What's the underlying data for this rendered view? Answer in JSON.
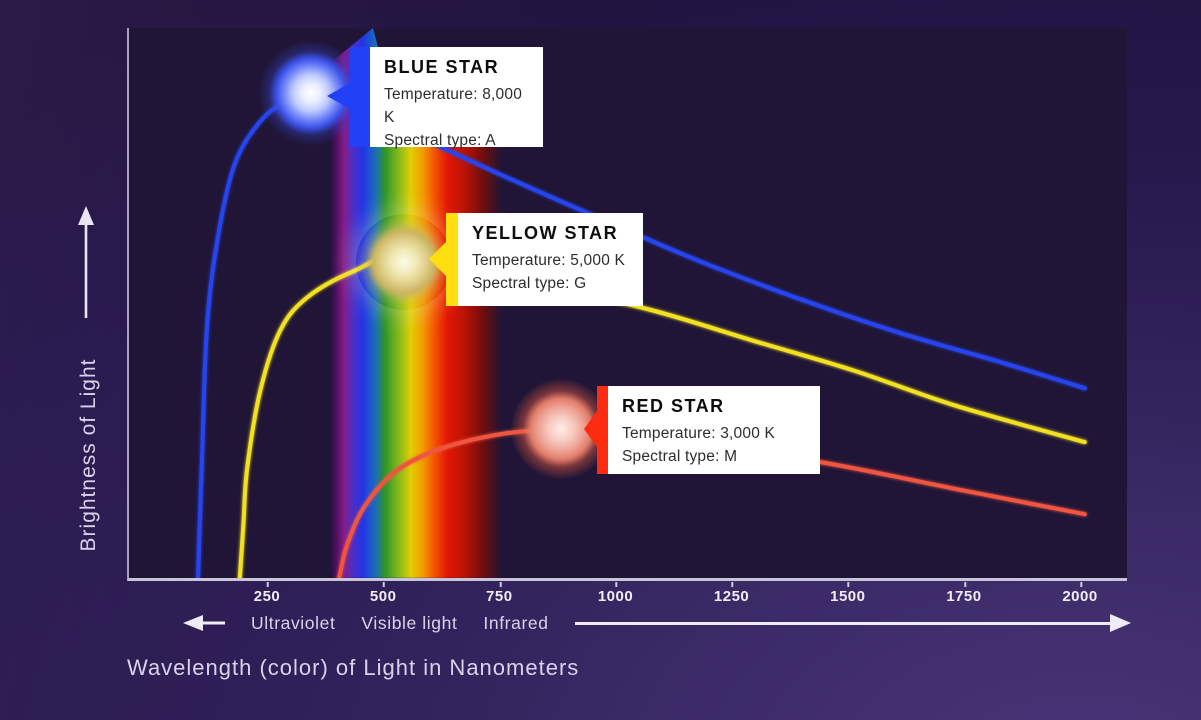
{
  "figure": {
    "y_axis_label": "Brightness of Light",
    "x_axis_title": "Wavelength (color) of Light in Nanometers",
    "region_labels": {
      "ultraviolet": "Ultraviolet",
      "visible": "Visible light",
      "infrared": "Infrared"
    }
  },
  "callouts": [
    {
      "name": "blue-star",
      "title": "BLUE STAR",
      "temperature": "Temperature: 8,000 K",
      "spectral": "Spectral type: A",
      "accent": "#2240f5"
    },
    {
      "name": "yellow-star",
      "title": "YELLOW STAR",
      "temperature": "Temperature: 5,000 K",
      "spectral": "Spectral type: G",
      "accent": "#ffdf10"
    },
    {
      "name": "red-star",
      "title": "RED STAR",
      "temperature": "Temperature: 3,000 K",
      "spectral": "Spectral type: M",
      "accent": "#fb2c10"
    }
  ],
  "chart_data": {
    "type": "line",
    "xlabel": "Wavelength (color) of Light in Nanometers",
    "ylabel": "Brightness of Light",
    "x_unit": "nm",
    "xlim": [
      0,
      2100
    ],
    "ylim": [
      0,
      1
    ],
    "x_ticks": [
      250,
      500,
      750,
      1000,
      1250,
      1500,
      1750,
      2000
    ],
    "grid": false,
    "legend": "callout-boxes",
    "visible_light_band_nm": [
      380,
      750
    ],
    "series": [
      {
        "name": "Blue star (8,000 K, spectral type A)",
        "color": "#2545ee",
        "peak_nm": 345,
        "points": [
          [
            97,
            0
          ],
          [
            105,
            0.2
          ],
          [
            116,
            0.45
          ],
          [
            138,
            0.61
          ],
          [
            175,
            0.75
          ],
          [
            231,
            0.83
          ],
          [
            290,
            0.868
          ],
          [
            345,
            0.878
          ],
          [
            430,
            0.857
          ],
          [
            540,
            0.815
          ],
          [
            750,
            0.733
          ],
          [
            970,
            0.651
          ],
          [
            1180,
            0.575
          ],
          [
            1400,
            0.505
          ],
          [
            1610,
            0.445
          ],
          [
            1830,
            0.391
          ],
          [
            2006,
            0.345
          ]
        ]
      },
      {
        "name": "Yellow star (5,000 K, spectral type G)",
        "color": "#f2e020",
        "peak_nm": 545,
        "points": [
          [
            187,
            0
          ],
          [
            195,
            0.1
          ],
          [
            203,
            0.2
          ],
          [
            231,
            0.34
          ],
          [
            274,
            0.45
          ],
          [
            332,
            0.51
          ],
          [
            430,
            0.557
          ],
          [
            545,
            0.585
          ],
          [
            800,
            0.537
          ],
          [
            1060,
            0.49
          ],
          [
            1290,
            0.432
          ],
          [
            1506,
            0.378
          ],
          [
            1722,
            0.315
          ],
          [
            2006,
            0.247
          ]
        ]
      },
      {
        "name": "Red star (3,000 K, spectral type M)",
        "color": "#f05540",
        "peak_nm": 950,
        "points": [
          [
            401,
            0
          ],
          [
            418,
            0.06
          ],
          [
            457,
            0.132
          ],
          [
            526,
            0.196
          ],
          [
            623,
            0.236
          ],
          [
            752,
            0.262
          ],
          [
            881,
            0.272
          ],
          [
            946,
            0.276
          ],
          [
            1200,
            0.238
          ],
          [
            1442,
            0.21
          ],
          [
            1722,
            0.163
          ],
          [
            2006,
            0.116
          ]
        ]
      }
    ],
    "spectrum_band": {
      "wavelength_range_nm": [
        380,
        750
      ],
      "stops": [
        [
          0,
          "rgba(40,8,60,0)"
        ],
        [
          3,
          "#4a0e5e"
        ],
        [
          8,
          "#8a1d8c"
        ],
        [
          13,
          "#5330cc"
        ],
        [
          19,
          "#2236f0"
        ],
        [
          26,
          "#1b6ec8"
        ],
        [
          32,
          "#2f9e26"
        ],
        [
          40,
          "#8cc31c"
        ],
        [
          47,
          "#ecd900"
        ],
        [
          54,
          "#ffa200"
        ],
        [
          61,
          "#ff5500"
        ],
        [
          68,
          "#ee1804"
        ],
        [
          80,
          "#b81104"
        ],
        [
          90,
          "rgba(122,13,8,0.85)"
        ],
        [
          100,
          "rgba(60,8,8,0)"
        ]
      ]
    }
  }
}
